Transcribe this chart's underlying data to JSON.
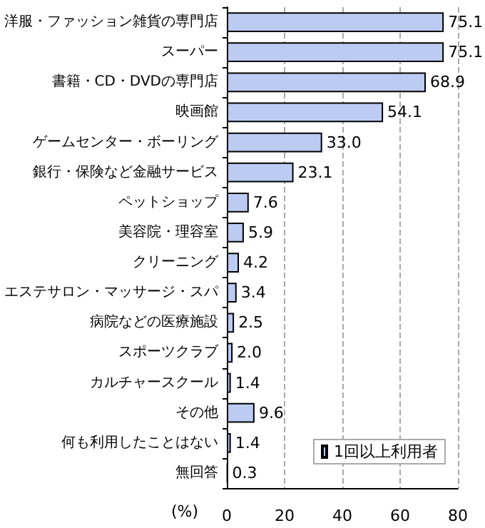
{
  "chart_data": {
    "type": "bar",
    "orientation": "horizontal",
    "xlabel": "(%)",
    "categories": [
      "洋服・ファッション雑貨の専門店",
      "スーパー",
      "書籍・CD・DVDの専門店",
      "映画館",
      "ゲームセンター・ボーリング",
      "銀行・保険など金融サービス",
      "ペットショップ",
      "美容院・理容室",
      "クリーニング",
      "エステサロン・マッサージ・スパ",
      "病院などの医療施設",
      "スポーツクラブ",
      "カルチャースクール",
      "その他",
      "何も利用したことはない",
      "無回答"
    ],
    "series": [
      {
        "name": "1回以上利用者",
        "color": "#bccbf2",
        "values": [
          75.1,
          75.1,
          68.9,
          54.1,
          33.0,
          23.1,
          7.6,
          5.9,
          4.2,
          3.4,
          2.5,
          2.0,
          1.4,
          9.6,
          1.4,
          0.3
        ],
        "value_labels": [
          "75.1",
          "75.1",
          "68.9",
          "54.1",
          "33.0",
          "23.1",
          "7.6",
          "5.9",
          "4.2",
          "3.4",
          "2.5",
          "2.0",
          "1.4",
          "9.6",
          "1.4",
          "0.3"
        ]
      }
    ],
    "xlim": [
      0,
      80
    ],
    "xticks": [
      0,
      20,
      40,
      60,
      80
    ],
    "grid": "x",
    "legend": "bottom right"
  }
}
